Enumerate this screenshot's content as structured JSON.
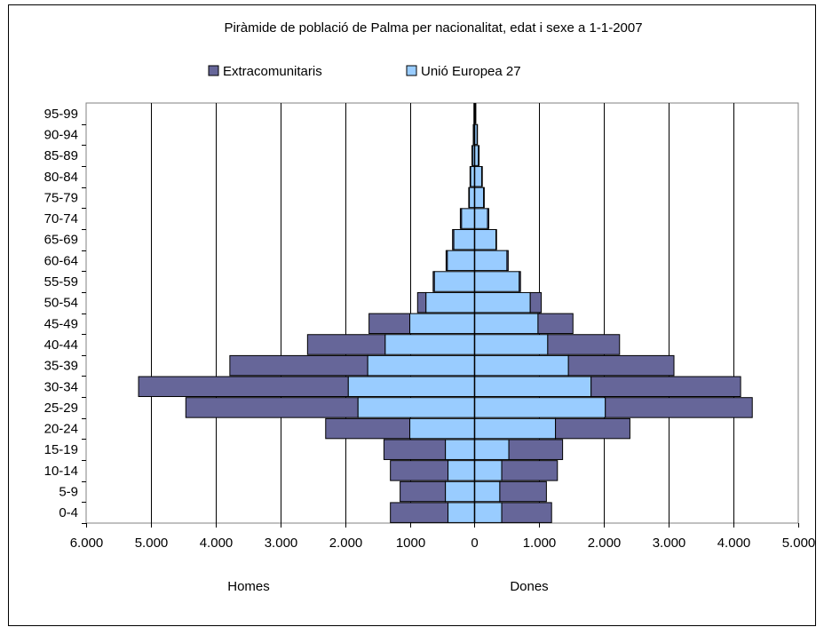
{
  "chart_data": {
    "type": "bar",
    "orientation": "horizontal",
    "stacking": "population-pyramid",
    "title": "Piràmide de població de Palma per nacionalitat, edat i sexe a 1-1-2007",
    "categories": [
      "0-4",
      "5-9",
      "10-14",
      "15-19",
      "20-24",
      "25-29",
      "30-34",
      "35-39",
      "40-44",
      "45-49",
      "50-54",
      "55-59",
      "60-64",
      "65-69",
      "70-74",
      "75-79",
      "80-84",
      "85-89",
      "90-94",
      "95-99"
    ],
    "groups": [
      {
        "name": "Homes",
        "side": "left"
      },
      {
        "name": "Dones",
        "side": "right"
      }
    ],
    "series": [
      {
        "name": "Unió Europea 27",
        "color": "#99ccff",
        "homes": [
          410,
          450,
          410,
          450,
          1000,
          1800,
          1950,
          1650,
          1380,
          1000,
          750,
          620,
          420,
          320,
          200,
          80,
          60,
          30,
          15,
          5
        ],
        "dones": [
          420,
          390,
          420,
          530,
          1250,
          2020,
          1800,
          1450,
          1130,
          980,
          860,
          690,
          500,
          330,
          200,
          140,
          110,
          60,
          40,
          15
        ]
      },
      {
        "name": "Extracomunitaris",
        "color": "#666699",
        "homes": [
          890,
          700,
          890,
          950,
          1300,
          2660,
          3240,
          2130,
          1200,
          630,
          130,
          20,
          20,
          20,
          20,
          10,
          10,
          10,
          5,
          5
        ],
        "dones": [
          770,
          720,
          860,
          830,
          1150,
          2270,
          2310,
          1630,
          1110,
          540,
          170,
          20,
          20,
          10,
          20,
          10,
          10,
          10,
          5,
          5
        ]
      }
    ],
    "x_ticks": [
      "6.000",
      "5.000",
      "4.000",
      "3.000",
      "2.000",
      "1000",
      "0",
      "1.000",
      "2.000",
      "3.000",
      "4.000",
      "5.000"
    ],
    "xlim": [
      -6000,
      5000
    ],
    "grid": true,
    "legend_position": "top"
  }
}
